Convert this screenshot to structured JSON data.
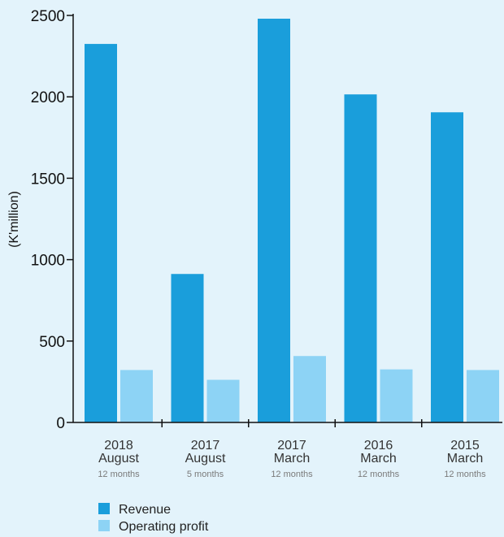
{
  "chart_data": {
    "type": "bar",
    "ylabel": "(K'million)",
    "ylim": [
      0,
      2500
    ],
    "yticks": [
      0,
      500,
      1000,
      1500,
      2000,
      2500
    ],
    "categories": [
      {
        "year": "2018",
        "month": "August",
        "period": "12 months"
      },
      {
        "year": "2017",
        "month": "August",
        "period": "5 months"
      },
      {
        "year": "2017",
        "month": "March",
        "period": "12 months"
      },
      {
        "year": "2016",
        "month": "March",
        "period": "12 months"
      },
      {
        "year": "2015",
        "month": "March",
        "period": "12 months"
      }
    ],
    "series": [
      {
        "name": "Revenue",
        "color": "#1a9edb",
        "values": [
          2325,
          912,
          2480,
          2015,
          1905
        ]
      },
      {
        "name": "Operating profit",
        "color": "#8dd3f5",
        "values": [
          322,
          262,
          408,
          326,
          322
        ]
      }
    ],
    "legend_position": "bottom-left",
    "grid": false
  }
}
